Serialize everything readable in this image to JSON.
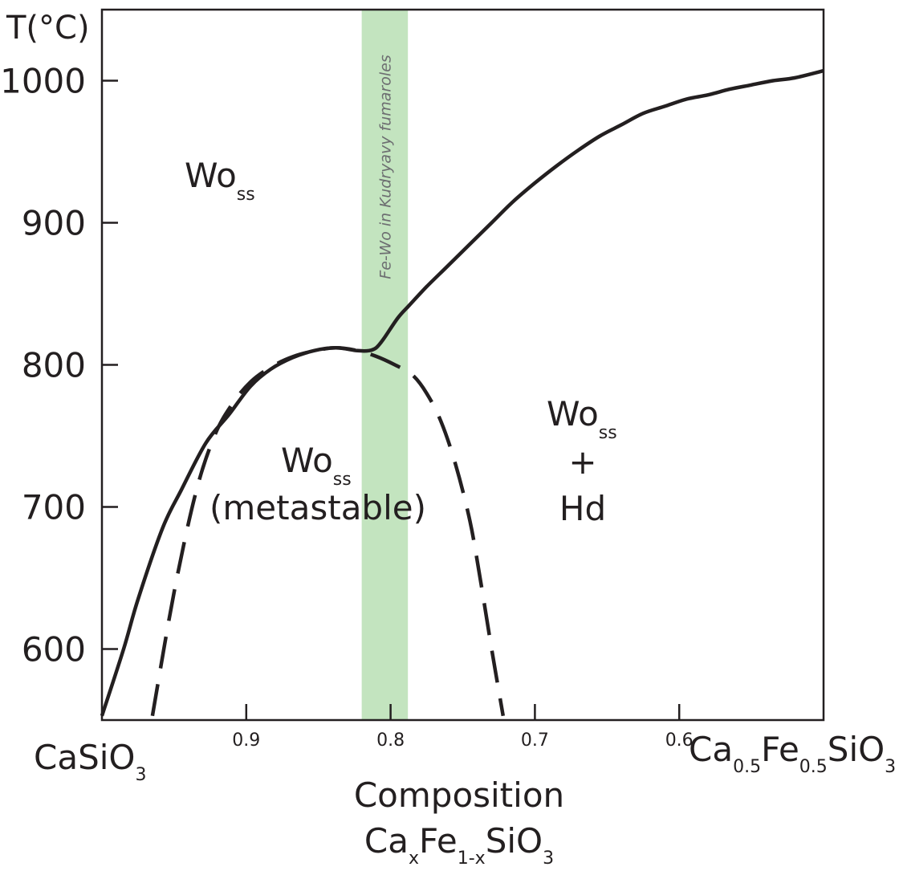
{
  "chart_data": {
    "type": "line",
    "title": "",
    "ylabel": "T(°C)",
    "xlabel_line1": "Composition",
    "xlabel_line2": {
      "ca": "Ca",
      "x": "x",
      "fe": "Fe",
      "sub": "1-x",
      "sio": "SiO",
      "three": "3"
    },
    "x_reversed": true,
    "xlim": [
      1.0,
      0.5
    ],
    "ylim": [
      550,
      1050
    ],
    "y_ticks": [
      {
        "value": 600,
        "label": "600"
      },
      {
        "value": 700,
        "label": "700"
      },
      {
        "value": 800,
        "label": "800"
      },
      {
        "value": 900,
        "label": "900"
      },
      {
        "value": 1000,
        "label": "1000"
      }
    ],
    "x_ticks": [
      {
        "value": 0.9,
        "label": "0.9"
      },
      {
        "value": 0.8,
        "label": "0.8"
      },
      {
        "value": 0.7,
        "label": "0.7"
      },
      {
        "value": 0.6,
        "label": "0.6"
      }
    ],
    "x_endpoint_left": {
      "main": "CaSiO",
      "sub": "3"
    },
    "x_endpoint_right": {
      "ca": "Ca",
      "s1": "0.5",
      "fe": "Fe",
      "s2": "0.5",
      "sio": "SiO",
      "s3": "3"
    },
    "band": {
      "label": "Fe-Wo in Kudryavy fumaroles",
      "x_from": 0.82,
      "x_to": 0.788,
      "color": "#c3e4bf"
    },
    "series": [
      {
        "style": "solid",
        "color": "#231f20",
        "points": [
          [
            1.0,
            553
          ],
          [
            0.985,
            600
          ],
          [
            0.975,
            635
          ],
          [
            0.958,
            685
          ],
          [
            0.945,
            712
          ],
          [
            0.928,
            745
          ],
          [
            0.912,
            765
          ],
          [
            0.897,
            785
          ],
          [
            0.883,
            797
          ],
          [
            0.868,
            805
          ],
          [
            0.853,
            810
          ],
          [
            0.838,
            812
          ],
          [
            0.823,
            810
          ],
          [
            0.815,
            810
          ],
          [
            0.81,
            812
          ],
          [
            0.805,
            818
          ],
          [
            0.795,
            833
          ],
          [
            0.787,
            842
          ],
          [
            0.775,
            855
          ],
          [
            0.76,
            870
          ],
          [
            0.745,
            885
          ],
          [
            0.73,
            900
          ],
          [
            0.715,
            915
          ],
          [
            0.7,
            928
          ],
          [
            0.685,
            940
          ],
          [
            0.67,
            951
          ],
          [
            0.655,
            961
          ],
          [
            0.64,
            969
          ],
          [
            0.625,
            977
          ],
          [
            0.61,
            982
          ],
          [
            0.595,
            987
          ],
          [
            0.58,
            990
          ],
          [
            0.565,
            994
          ],
          [
            0.55,
            997
          ],
          [
            0.535,
            1000
          ],
          [
            0.52,
            1002
          ],
          [
            0.5,
            1007
          ]
        ]
      },
      {
        "style": "dashed",
        "color": "#231f20",
        "points": [
          [
            0.965,
            553
          ],
          [
            0.95,
            640
          ],
          [
            0.935,
            710
          ],
          [
            0.922,
            750
          ],
          [
            0.91,
            772
          ],
          [
            0.897,
            788
          ],
          [
            0.882,
            799
          ],
          [
            0.867,
            806
          ],
          [
            0.852,
            810
          ],
          [
            0.838,
            812
          ],
          [
            0.823,
            810
          ],
          [
            0.81,
            806
          ],
          [
            0.797,
            800
          ],
          [
            0.785,
            793
          ],
          [
            0.775,
            780
          ],
          [
            0.765,
            760
          ],
          [
            0.755,
            730
          ],
          [
            0.745,
            690
          ],
          [
            0.738,
            650
          ],
          [
            0.73,
            600
          ],
          [
            0.722,
            553
          ]
        ]
      }
    ],
    "annotations": {
      "wo_ss_top": {
        "main": "Wo",
        "sub": "ss"
      },
      "wo_ss_meta": {
        "main": "Wo",
        "sub": "ss",
        "line2": "(metastable)"
      },
      "wo_ss_hd": {
        "main": "Wo",
        "sub": "ss",
        "plus": "+",
        "line3": "Hd"
      }
    }
  }
}
